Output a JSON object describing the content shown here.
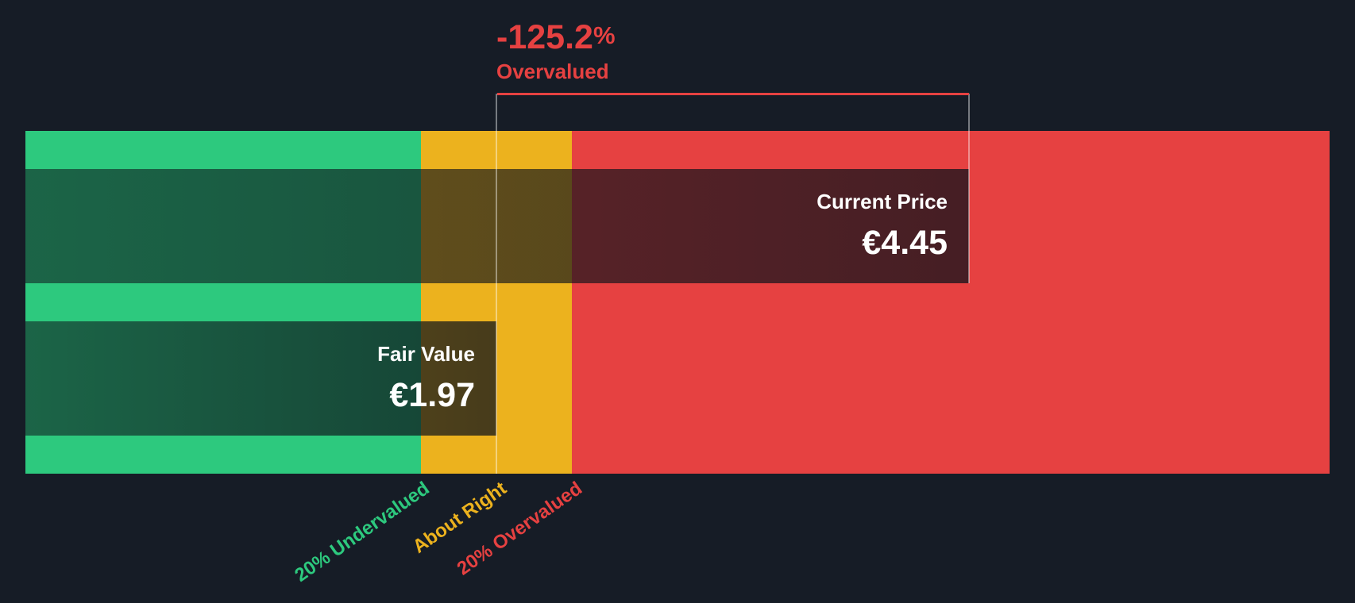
{
  "annotation": {
    "percent_value": "-125.2",
    "percent_sign": "%",
    "status_label": "Overvalued"
  },
  "current_price": {
    "label": "Current Price",
    "value": "€4.45"
  },
  "fair_value": {
    "label": "Fair Value",
    "value": "€1.97"
  },
  "axis_labels": {
    "undervalued": "20% Undervalued",
    "about_right": "About Right",
    "overvalued": "20% Overvalued"
  },
  "colors": {
    "background": "#161c26",
    "undervalued_green": "#2dc97e",
    "about_right_amber": "#ecb21e",
    "overvalued_red": "#e64141",
    "text_white": "#ffffff"
  },
  "chart_data": {
    "type": "bar",
    "orientation": "horizontal",
    "series": [
      {
        "name": "Current Price",
        "value": 4.45,
        "currency_symbol": "€",
        "display": "€4.45"
      },
      {
        "name": "Fair Value",
        "value": 1.97,
        "currency_symbol": "€",
        "display": "€1.97"
      }
    ],
    "valuation_percent": -125.2,
    "valuation_status": "Overvalued",
    "zones": [
      {
        "label": "20% Undervalued",
        "color": "#2dc97e"
      },
      {
        "label": "About Right",
        "color": "#ecb21e"
      },
      {
        "label": "20% Overvalued",
        "color": "#e64141"
      }
    ],
    "legend_position": "bottom",
    "grid": false
  }
}
